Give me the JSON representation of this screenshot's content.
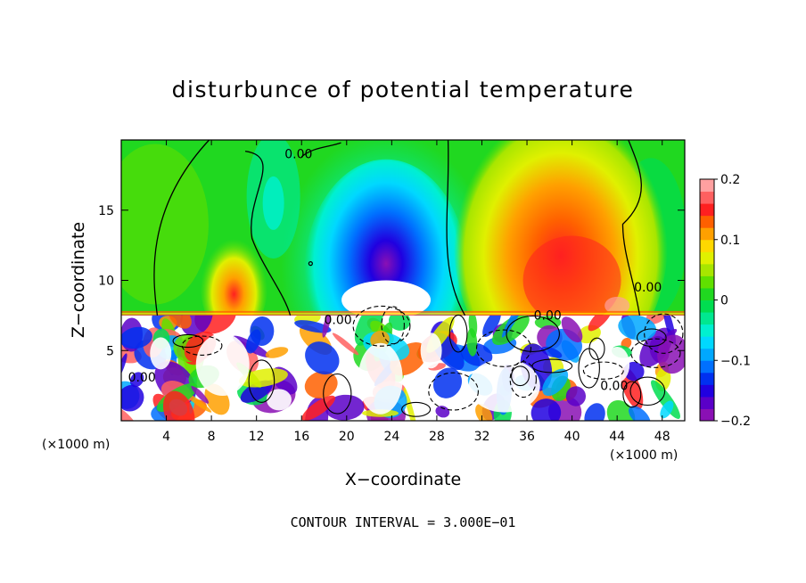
{
  "chart_data": {
    "type": "heatmap",
    "title": "disturbunce of potential temperature",
    "xlabel": "X−coordinate",
    "ylabel": "Z−coordinate",
    "x_unit": "(×1000 m)",
    "y_unit": "(×1000 m)",
    "footer": "CONTOUR INTERVAL = 3.000E−01",
    "xlim": [
      0,
      50
    ],
    "ylim": [
      0,
      20
    ],
    "x_ticks": [
      4,
      8,
      12,
      16,
      20,
      24,
      28,
      32,
      36,
      40,
      44,
      48
    ],
    "y_ticks": [
      5,
      10,
      15
    ],
    "colorbar": {
      "range": [
        -0.2,
        0.2
      ],
      "ticks": [
        {
          "value": 0.2,
          "label": "0.2"
        },
        {
          "value": 0.1,
          "label": "0.1"
        },
        {
          "value": 0.0,
          "label": "0"
        },
        {
          "value": -0.1,
          "label": "−0.1"
        },
        {
          "value": -0.2,
          "label": "−0.2"
        }
      ],
      "colors": [
        "#8a10b4",
        "#5a00c8",
        "#2000e0",
        "#0030f0",
        "#0070ff",
        "#00a8ff",
        "#00d8ff",
        "#00f0d0",
        "#00e890",
        "#00dd50",
        "#20d820",
        "#60e000",
        "#a8e600",
        "#e0f000",
        "#ffd800",
        "#ffa000",
        "#ff6000",
        "#ff2020",
        "#ff6060",
        "#ffa0a0"
      ]
    },
    "contour_labels": [
      {
        "text": "0.00",
        "x": 14.5,
        "y": 18.7
      },
      {
        "text": "0.00",
        "x": 36.6,
        "y": 7.2
      },
      {
        "text": "0.00",
        "x": 45.5,
        "y": 9.2
      },
      {
        "text": "0.00",
        "x": 18.0,
        "y": 6.9
      },
      {
        "text": "0.00",
        "x": 0.6,
        "y": 2.8
      },
      {
        "text": "0.00",
        "x": 42.5,
        "y": 2.2
      }
    ],
    "features": {
      "upper_layer_z_min": 7.5,
      "cold_core": {
        "x": 23.5,
        "z": 11,
        "value": -0.2
      },
      "warm_core": {
        "x": 39,
        "z": 11.5,
        "value": 0.15
      },
      "warm_lobe": {
        "x": 10,
        "z": 9.8,
        "value": 0.1
      }
    }
  }
}
